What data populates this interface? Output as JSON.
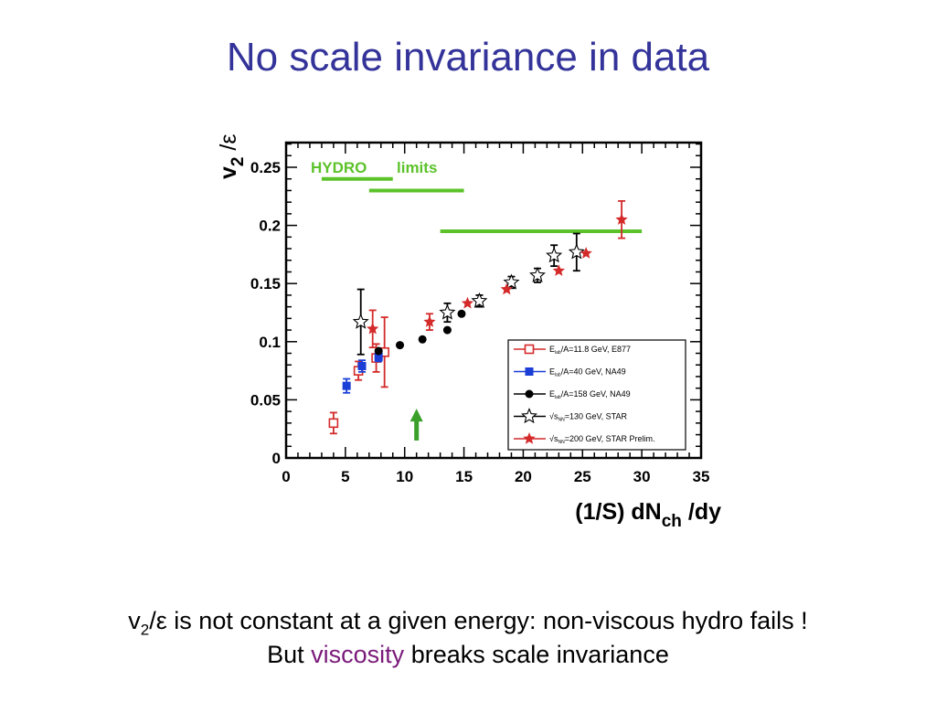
{
  "slide": {
    "title": "No scale invariance in data",
    "caption_line1": {
      "v": "v",
      "sub": "2",
      "rest": "/ε is not constant at a given energy: non-viscous hydro fails !"
    },
    "caption_line2": {
      "pre": "But ",
      "highlight": "viscosity",
      "post": " breaks scale invariance"
    },
    "highlight_color": "#7a1a7a",
    "title_color": "#33339a"
  },
  "chart_data": {
    "type": "scatter",
    "ylabel": {
      "main": "v",
      "sub": "2",
      "rest": " /ε"
    },
    "xlabel": {
      "main": "(1/S) dN",
      "sub": "ch",
      "rest": " /dy"
    },
    "xlim": [
      0,
      35
    ],
    "ylim": [
      0,
      0.27
    ],
    "x_ticks": [
      0,
      5,
      10,
      15,
      20,
      25,
      30,
      35
    ],
    "y_ticks": [
      0,
      0.05,
      0.1,
      0.15,
      0.2,
      0.25
    ],
    "y_tick_labels": [
      "0",
      "0.05",
      "0.1",
      "0.15",
      "0.2",
      "0.25"
    ],
    "grid": false,
    "hydro_label": {
      "word1": "HYDRO",
      "word2": "limits",
      "color": "#5cc22a"
    },
    "hydro_limits": [
      {
        "x1": 3,
        "x2": 9,
        "y": 0.24
      },
      {
        "x1": 7,
        "x2": 15,
        "y": 0.23
      },
      {
        "x1": 13,
        "x2": 30,
        "y": 0.195
      }
    ],
    "arrow": {
      "x": 11,
      "y_from": 0.015,
      "y_to": 0.04,
      "color": "#3aa02a"
    },
    "series": [
      {
        "name": "E_lab/A=11.8 GeV, E877",
        "legend": {
          "pre": "E",
          "sub": "lab",
          "post": "/A=11.8 GeV, E877"
        },
        "marker": "open-square",
        "color": "#d42a2a",
        "points": [
          {
            "x": 4.0,
            "y": 0.03,
            "err": 0.009
          },
          {
            "x": 6.1,
            "y": 0.075,
            "err": 0.008
          },
          {
            "x": 7.6,
            "y": 0.086,
            "err": 0.012
          },
          {
            "x": 8.3,
            "y": 0.091,
            "err": 0.03
          }
        ]
      },
      {
        "name": "E_lab/A=40 GeV, NA49",
        "legend": {
          "pre": "E",
          "sub": "lab",
          "post": "/A=40 GeV, NA49"
        },
        "marker": "filled-square",
        "color": "#1a3ed6",
        "points": [
          {
            "x": 5.1,
            "y": 0.062,
            "err": 0.006
          },
          {
            "x": 6.4,
            "y": 0.079,
            "err": 0.005
          },
          {
            "x": 7.8,
            "y": 0.087,
            "err": 0.004
          }
        ]
      },
      {
        "name": "E_lab/A=158 GeV, NA49",
        "legend": {
          "pre": "E",
          "sub": "lab",
          "post": "/A=158 GeV, NA49"
        },
        "marker": "filled-circle",
        "color": "#000000",
        "points": [
          {
            "x": 7.8,
            "y": 0.092,
            "err": 0.0
          },
          {
            "x": 9.6,
            "y": 0.097,
            "err": 0.0
          },
          {
            "x": 11.5,
            "y": 0.102,
            "err": 0.0
          },
          {
            "x": 13.6,
            "y": 0.11,
            "err": 0.0
          },
          {
            "x": 14.8,
            "y": 0.124,
            "err": 0.0
          }
        ]
      },
      {
        "name": "√s_NN=130 GeV, STAR",
        "legend": {
          "pre": "√s",
          "sub": "NN",
          "post": "=130 GeV, STAR"
        },
        "marker": "open-star",
        "color": "#000000",
        "points": [
          {
            "x": 6.3,
            "y": 0.117,
            "err": 0.028
          },
          {
            "x": 13.6,
            "y": 0.125,
            "err": 0.008
          },
          {
            "x": 16.3,
            "y": 0.135,
            "err": 0.005
          },
          {
            "x": 19.0,
            "y": 0.151,
            "err": 0.005
          },
          {
            "x": 21.2,
            "y": 0.157,
            "err": 0.006
          },
          {
            "x": 22.6,
            "y": 0.174,
            "err": 0.009
          },
          {
            "x": 24.5,
            "y": 0.177,
            "err": 0.016
          }
        ]
      },
      {
        "name": "√s_NN=200 GeV, STAR Prelim.",
        "legend": {
          "pre": "√s",
          "sub": "NN",
          "post": "=200 GeV, STAR Prelim."
        },
        "marker": "filled-star",
        "color": "#d42a2a",
        "points": [
          {
            "x": 7.3,
            "y": 0.111,
            "err": 0.016
          },
          {
            "x": 12.1,
            "y": 0.117,
            "err": 0.007
          },
          {
            "x": 15.3,
            "y": 0.133,
            "err": 0.0
          },
          {
            "x": 18.6,
            "y": 0.145,
            "err": 0.0
          },
          {
            "x": 23.0,
            "y": 0.161,
            "err": 0.0
          },
          {
            "x": 25.3,
            "y": 0.176,
            "err": 0.0
          },
          {
            "x": 28.3,
            "y": 0.205,
            "err": 0.016
          }
        ]
      }
    ]
  }
}
